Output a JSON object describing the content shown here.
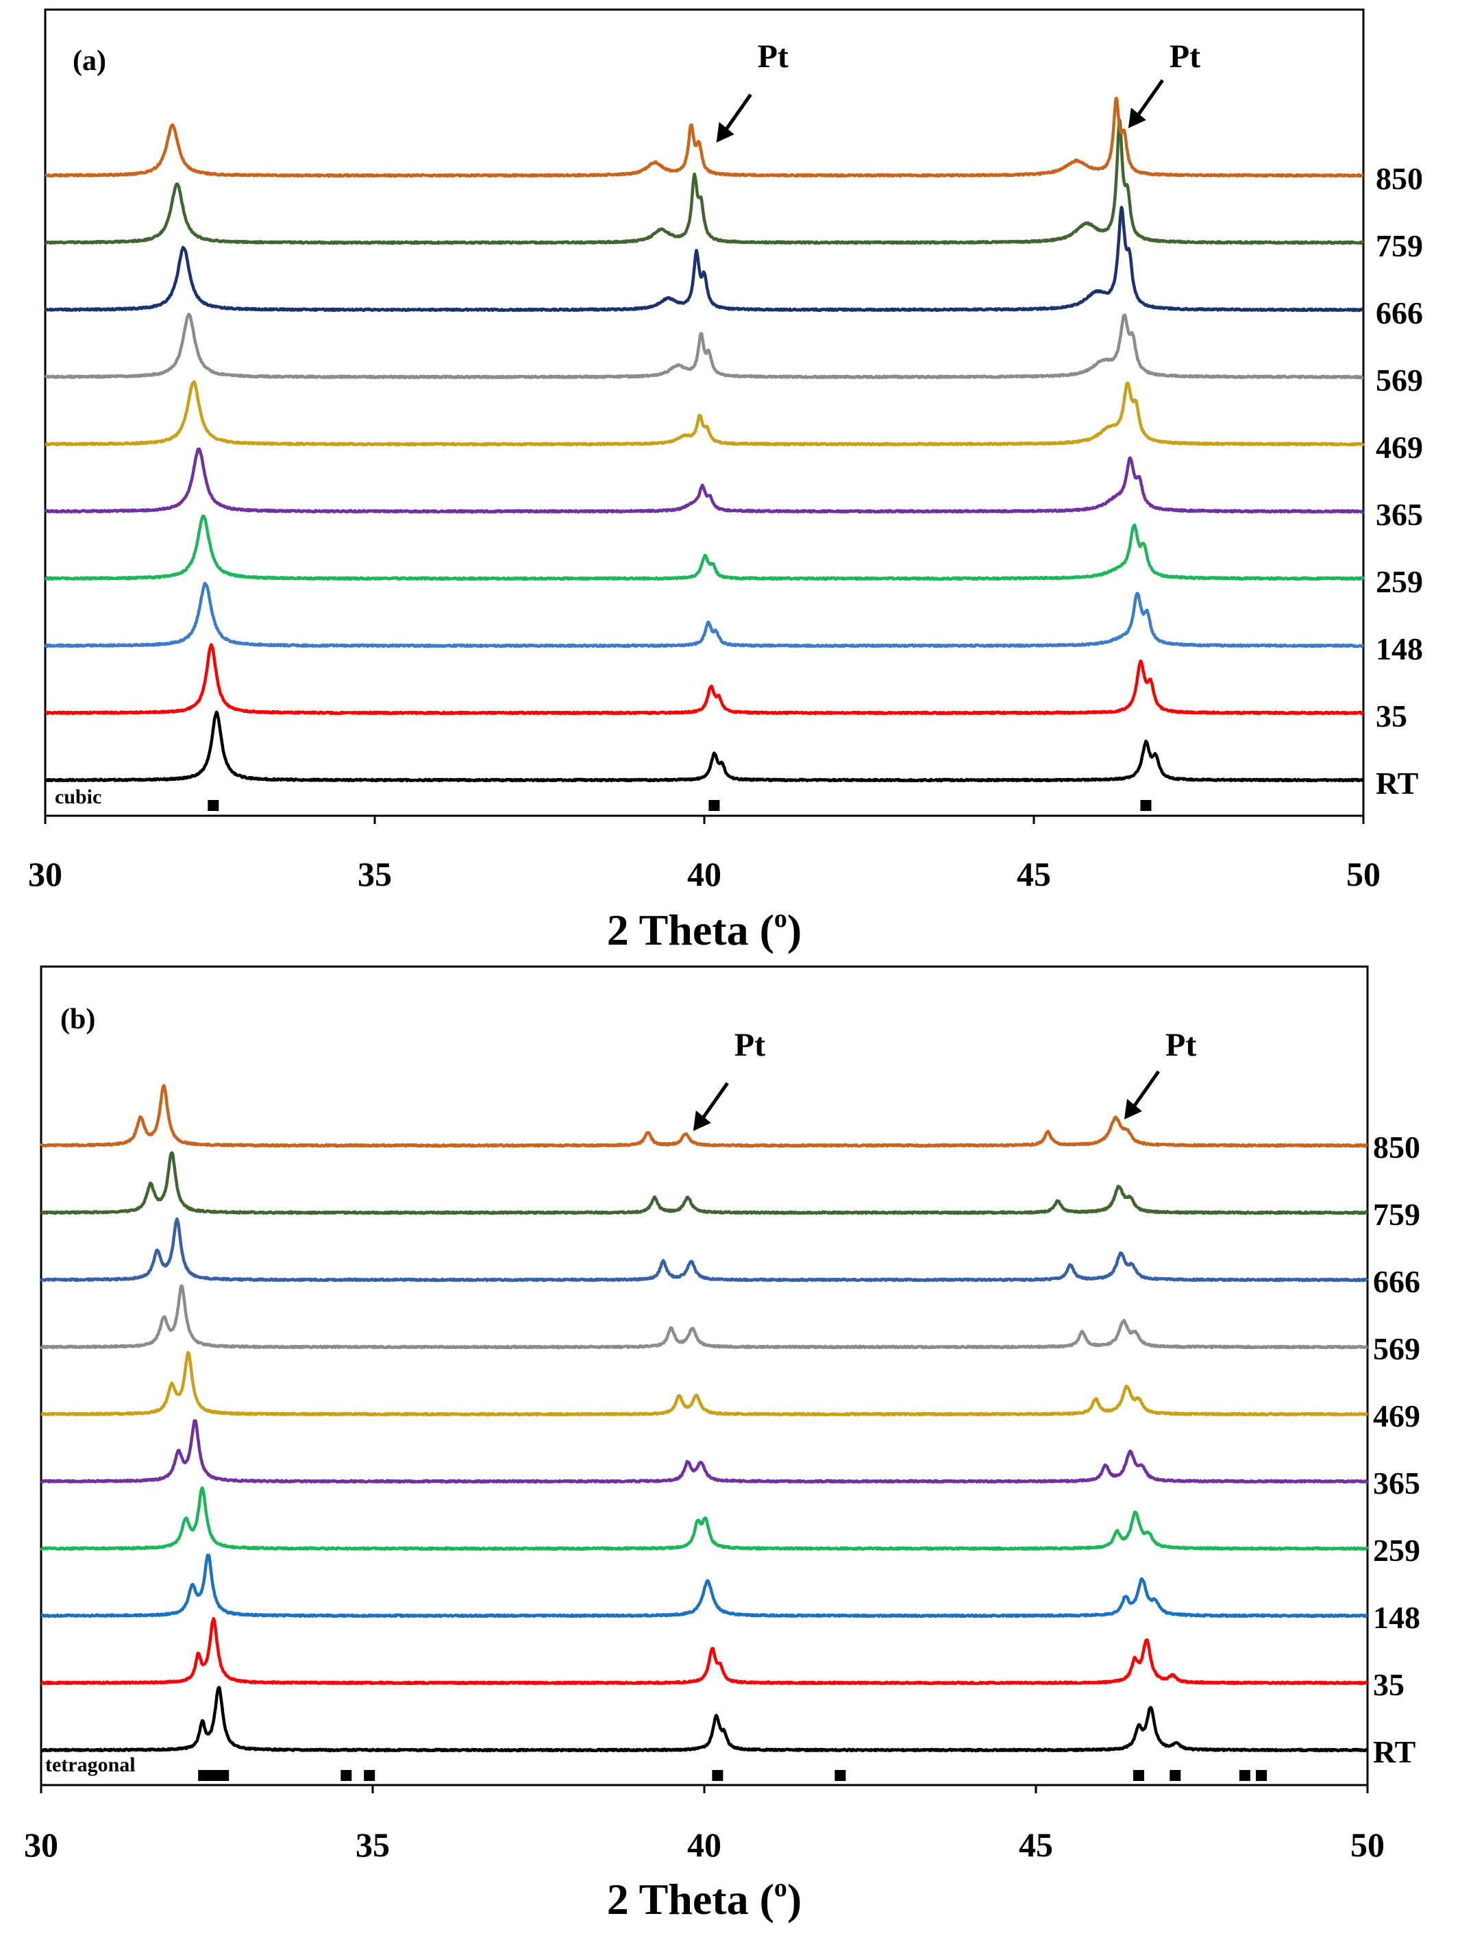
{
  "chart_data": [
    {
      "type": "line",
      "panel_label": "(a)",
      "phase_label": "cubic",
      "xlabel": "2 Theta (",
      "xlabel_superscript": "o",
      "xlabel_close": ")",
      "xlim": [
        30,
        50
      ],
      "xticks": [
        30,
        35,
        40,
        45,
        50
      ],
      "tick_labels": [
        "30",
        "35",
        "40",
        "45",
        "50"
      ],
      "reference_positions": [
        32.55,
        40.15,
        46.7
      ],
      "pt_annotations": [
        {
          "text": "Pt",
          "x": 40.1
        },
        {
          "text": "Pt",
          "x": 46.35
        }
      ],
      "series": [
        {
          "name": "RT",
          "color": "#000000",
          "peaks": [
            [
              32.6,
              1.9,
              0.09
            ],
            [
              40.15,
              0.7,
              0.06
            ],
            [
              40.27,
              0.35,
              0.05
            ],
            [
              46.7,
              1.0,
              0.07
            ],
            [
              46.85,
              0.55,
              0.06
            ]
          ]
        },
        {
          "name": "35",
          "color": "#ff0000",
          "peaks": [
            [
              32.52,
              1.9,
              0.09
            ],
            [
              40.1,
              0.7,
              0.06
            ],
            [
              40.22,
              0.35,
              0.05
            ],
            [
              46.62,
              1.35,
              0.07
            ],
            [
              46.77,
              0.7,
              0.06
            ]
          ]
        },
        {
          "name": "148",
          "color": "#3d7cc9",
          "peaks": [
            [
              32.43,
              1.75,
              0.11
            ],
            [
              40.06,
              0.6,
              0.06
            ],
            [
              40.18,
              0.3,
              0.05
            ],
            [
              46.35,
              0.15,
              0.25
            ],
            [
              46.57,
              1.3,
              0.07
            ],
            [
              46.72,
              0.7,
              0.06
            ]
          ]
        },
        {
          "name": "259",
          "color": "#1db75b",
          "peaks": [
            [
              32.4,
              1.75,
              0.11
            ],
            [
              40.01,
              0.6,
              0.06
            ],
            [
              40.13,
              0.3,
              0.05
            ],
            [
              46.3,
              0.2,
              0.25
            ],
            [
              46.52,
              1.3,
              0.07
            ],
            [
              46.67,
              0.7,
              0.06
            ]
          ]
        },
        {
          "name": "365",
          "color": "#7030a0",
          "peaks": [
            [
              32.33,
              1.75,
              0.11
            ],
            [
              39.85,
              0.2,
              0.15
            ],
            [
              39.97,
              0.55,
              0.05
            ],
            [
              40.08,
              0.3,
              0.05
            ],
            [
              46.25,
              0.3,
              0.2
            ],
            [
              46.46,
              1.25,
              0.07
            ],
            [
              46.6,
              0.65,
              0.06
            ]
          ]
        },
        {
          "name": "469",
          "color": "#c9a016",
          "peaks": [
            [
              32.25,
              1.75,
              0.11
            ],
            [
              39.7,
              0.2,
              0.15
            ],
            [
              39.93,
              0.7,
              0.05
            ],
            [
              40.04,
              0.35,
              0.05
            ],
            [
              46.15,
              0.4,
              0.2
            ],
            [
              46.42,
              1.45,
              0.07
            ],
            [
              46.55,
              0.8,
              0.06
            ]
          ]
        },
        {
          "name": "569",
          "color": "#8c8c8c",
          "peaks": [
            [
              32.18,
              1.75,
              0.11
            ],
            [
              39.6,
              0.3,
              0.15
            ],
            [
              39.95,
              1.1,
              0.05
            ],
            [
              40.07,
              0.55,
              0.05
            ],
            [
              46.05,
              0.4,
              0.2
            ],
            [
              46.37,
              1.5,
              0.07
            ],
            [
              46.5,
              0.8,
              0.06
            ]
          ]
        },
        {
          "name": "666",
          "color": "#1a3270",
          "peaks": [
            [
              32.1,
              1.75,
              0.11
            ],
            [
              39.45,
              0.3,
              0.15
            ],
            [
              39.88,
              1.5,
              0.05
            ],
            [
              40.0,
              0.8,
              0.05
            ],
            [
              45.95,
              0.45,
              0.2
            ],
            [
              46.33,
              2.6,
              0.06
            ],
            [
              46.45,
              1.1,
              0.05
            ]
          ]
        },
        {
          "name": "759",
          "color": "#3f6630",
          "peaks": [
            [
              32.0,
              1.65,
              0.11
            ],
            [
              39.35,
              0.35,
              0.15
            ],
            [
              39.85,
              1.7,
              0.05
            ],
            [
              39.95,
              0.9,
              0.05
            ],
            [
              45.8,
              0.5,
              0.2
            ],
            [
              46.3,
              3.2,
              0.05
            ],
            [
              46.42,
              1.1,
              0.05
            ]
          ]
        },
        {
          "name": "850",
          "color": "#c9641c",
          "peaks": [
            [
              31.93,
              1.4,
              0.11
            ],
            [
              39.25,
              0.35,
              0.15
            ],
            [
              39.8,
              1.3,
              0.05
            ],
            [
              39.92,
              0.75,
              0.05
            ],
            [
              45.65,
              0.4,
              0.2
            ],
            [
              46.25,
              2.0,
              0.05
            ],
            [
              46.37,
              0.95,
              0.05
            ]
          ]
        }
      ]
    },
    {
      "type": "line",
      "panel_label": "(b)",
      "phase_label": "tetragonal",
      "xlabel": "2 Theta (",
      "xlabel_superscript": "o",
      "xlabel_close": ")",
      "xlim": [
        30,
        50
      ],
      "xticks": [
        30,
        35,
        40,
        45,
        50
      ],
      "tick_labels": [
        "30",
        "35",
        "40",
        "45",
        "50"
      ],
      "reference_positions": [
        32.45,
        32.6,
        32.75,
        34.6,
        34.95,
        40.2,
        42.05,
        46.55,
        47.1,
        48.15,
        48.4
      ],
      "pt_annotations": [
        {
          "text": "Pt",
          "x": 39.75
        },
        {
          "text": "Pt",
          "x": 46.25
        }
      ],
      "series": [
        {
          "name": "RT",
          "color": "#000000",
          "peaks": [
            [
              32.43,
              0.75,
              0.05
            ],
            [
              32.68,
              1.9,
              0.07
            ],
            [
              40.18,
              1.0,
              0.06
            ],
            [
              40.3,
              0.4,
              0.05
            ],
            [
              46.55,
              0.6,
              0.06
            ],
            [
              46.73,
              1.25,
              0.07
            ],
            [
              47.12,
              0.2,
              0.06
            ]
          ]
        },
        {
          "name": "35",
          "color": "#ff0000",
          "peaks": [
            [
              32.37,
              0.75,
              0.05
            ],
            [
              32.6,
              1.9,
              0.07
            ],
            [
              40.12,
              1.0,
              0.06
            ],
            [
              40.24,
              0.4,
              0.05
            ],
            [
              46.49,
              0.6,
              0.06
            ],
            [
              46.67,
              1.25,
              0.07
            ],
            [
              47.06,
              0.2,
              0.06
            ]
          ]
        },
        {
          "name": "148",
          "color": "#1a72c4",
          "peaks": [
            [
              32.28,
              0.8,
              0.07
            ],
            [
              32.52,
              1.8,
              0.07
            ],
            [
              40.05,
              1.05,
              0.09
            ],
            [
              46.35,
              0.5,
              0.06
            ],
            [
              46.6,
              1.05,
              0.08
            ],
            [
              46.8,
              0.35,
              0.07
            ]
          ]
        },
        {
          "name": "259",
          "color": "#1db75b",
          "peaks": [
            [
              32.18,
              0.8,
              0.07
            ],
            [
              32.43,
              1.8,
              0.07
            ],
            [
              39.9,
              0.7,
              0.06
            ],
            [
              40.02,
              0.8,
              0.06
            ],
            [
              46.22,
              0.45,
              0.06
            ],
            [
              46.5,
              1.05,
              0.08
            ],
            [
              46.7,
              0.35,
              0.07
            ]
          ]
        },
        {
          "name": "365",
          "color": "#7030a0",
          "peaks": [
            [
              32.07,
              0.8,
              0.07
            ],
            [
              32.32,
              1.8,
              0.07
            ],
            [
              39.75,
              0.55,
              0.06
            ],
            [
              39.95,
              0.55,
              0.07
            ],
            [
              46.05,
              0.45,
              0.06
            ],
            [
              46.42,
              0.85,
              0.08
            ],
            [
              46.6,
              0.35,
              0.07
            ]
          ]
        },
        {
          "name": "469",
          "color": "#c9a016",
          "peaks": [
            [
              31.97,
              0.8,
              0.07
            ],
            [
              32.22,
              1.8,
              0.07
            ],
            [
              39.62,
              0.55,
              0.06
            ],
            [
              39.88,
              0.55,
              0.07
            ],
            [
              45.9,
              0.45,
              0.06
            ],
            [
              46.37,
              0.8,
              0.08
            ],
            [
              46.55,
              0.35,
              0.07
            ]
          ]
        },
        {
          "name": "569",
          "color": "#8c8c8c",
          "peaks": [
            [
              31.85,
              0.8,
              0.07
            ],
            [
              32.12,
              1.8,
              0.07
            ],
            [
              39.5,
              0.55,
              0.06
            ],
            [
              39.82,
              0.55,
              0.07
            ],
            [
              45.7,
              0.45,
              0.06
            ],
            [
              46.32,
              0.75,
              0.08
            ],
            [
              46.5,
              0.35,
              0.07
            ]
          ]
        },
        {
          "name": "666",
          "color": "#3760a8",
          "peaks": [
            [
              31.75,
              0.8,
              0.07
            ],
            [
              32.05,
              1.8,
              0.07
            ],
            [
              39.38,
              0.55,
              0.06
            ],
            [
              39.8,
              0.55,
              0.07
            ],
            [
              45.52,
              0.45,
              0.06
            ],
            [
              46.28,
              0.75,
              0.08
            ],
            [
              46.45,
              0.35,
              0.07
            ]
          ]
        },
        {
          "name": "759",
          "color": "#3f6630",
          "peaks": [
            [
              31.65,
              0.8,
              0.07
            ],
            [
              31.97,
              1.8,
              0.07
            ],
            [
              39.25,
              0.45,
              0.06
            ],
            [
              39.75,
              0.45,
              0.07
            ],
            [
              45.33,
              0.35,
              0.06
            ],
            [
              46.25,
              0.75,
              0.08
            ],
            [
              46.42,
              0.35,
              0.07
            ]
          ]
        },
        {
          "name": "850",
          "color": "#c9641c",
          "peaks": [
            [
              31.5,
              0.8,
              0.07
            ],
            [
              31.85,
              1.8,
              0.07
            ],
            [
              39.15,
              0.4,
              0.06
            ],
            [
              39.72,
              0.35,
              0.07
            ],
            [
              45.18,
              0.4,
              0.06
            ],
            [
              46.2,
              0.8,
              0.1
            ],
            [
              46.38,
              0.3,
              0.07
            ]
          ]
        }
      ]
    }
  ]
}
